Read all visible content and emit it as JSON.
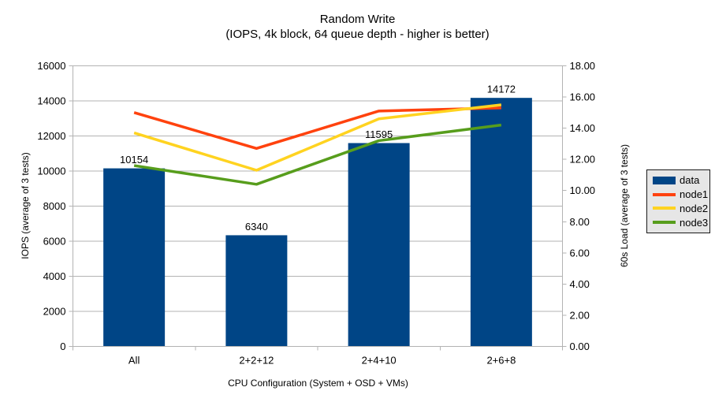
{
  "title": "Random Write",
  "subtitle": "(IOPS, 4k block, 64 queue depth - higher is better)",
  "chart_data": {
    "type": "bar",
    "subtype": "bar-left-axis with lines-right-axis combo",
    "categories": [
      "All",
      "2+2+12",
      "2+4+10",
      "2+6+8"
    ],
    "bar_series": {
      "name": "data",
      "axis": "left",
      "values": [
        10154,
        6340,
        11595,
        14172
      ],
      "data_labels": [
        "10154",
        "6340",
        "11595",
        "14172"
      ],
      "color": "#004586"
    },
    "line_series": [
      {
        "name": "node1",
        "axis": "right",
        "values": [
          15.0,
          12.7,
          15.1,
          15.3
        ],
        "color": "#FF420E"
      },
      {
        "name": "node2",
        "axis": "right",
        "values": [
          13.7,
          11.3,
          14.6,
          15.5
        ],
        "color": "#FFD320"
      },
      {
        "name": "node3",
        "axis": "right",
        "values": [
          11.6,
          10.4,
          13.2,
          14.2
        ],
        "color": "#579D1C"
      }
    ],
    "xlabel": "CPU Configuration (System + OSD + VMs)",
    "ylabel_left": "IOPS (average of 3 tests)",
    "ylabel_right": "60s Load (average of 3 tests)",
    "yaxis_left": {
      "min": 0,
      "max": 16000,
      "step": 2000,
      "tick_labels": [
        "0",
        "2000",
        "4000",
        "6000",
        "8000",
        "10000",
        "12000",
        "14000",
        "16000"
      ]
    },
    "yaxis_right": {
      "min": 0,
      "max": 18,
      "step": 2,
      "tick_labels": [
        "0.00",
        "2.00",
        "4.00",
        "6.00",
        "8.00",
        "10.00",
        "12.00",
        "14.00",
        "16.00",
        "18.00"
      ]
    },
    "grid": "horizontal major gridlines from left axis",
    "legend_position": "right",
    "legend_items": [
      {
        "label": "data",
        "color": "#004586",
        "swatch": "bar"
      },
      {
        "label": "node1",
        "color": "#FF420E",
        "swatch": "line"
      },
      {
        "label": "node2",
        "color": "#FFD320",
        "swatch": "line"
      },
      {
        "label": "node3",
        "color": "#579D1C",
        "swatch": "line"
      }
    ],
    "colors": {
      "background": "#ffffff",
      "grid_and_axes": "#b3b3b3",
      "text": "#000000",
      "legend_background": "#e6e6e6",
      "legend_border": "#1a1a1a"
    }
  }
}
